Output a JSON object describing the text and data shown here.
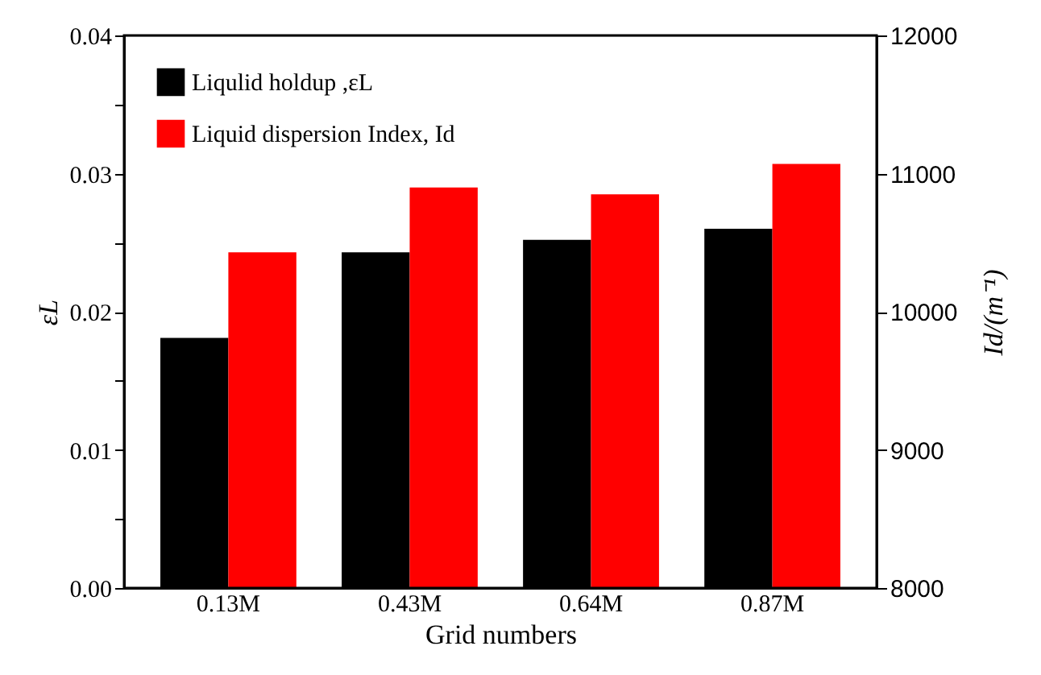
{
  "chart_data": {
    "type": "bar",
    "xlabel": "Grid numbers",
    "ylabel": "εL",
    "y2label": "Id/(m⁻¹)",
    "categories": [
      "0.13M",
      "0.43M",
      "0.64M",
      "0.87M"
    ],
    "series": [
      {
        "name": "Liqulid holdup ,εL",
        "color": "#000000",
        "values": [
          0.0181,
          0.0243,
          0.0252,
          0.026
        ]
      },
      {
        "name": "Liquid dispersion Index, Id",
        "color": "#ff0000",
        "axis": "y2",
        "values": [
          10430,
          10900,
          10850,
          11070
        ]
      }
    ],
    "ylim": [
      0,
      0.04
    ],
    "yticks": [
      {
        "value": 0,
        "label": "0.00"
      },
      {
        "value": 0.005,
        "label": null
      },
      0.01,
      {
        "value": 0.015,
        "label": null
      },
      0.02,
      {
        "value": 0.025,
        "label": null
      },
      0.03,
      {
        "value": 0.035,
        "label": null
      },
      0.04
    ],
    "y2lim": [
      8000,
      12000
    ],
    "y2ticks": [
      8000,
      9000,
      10000,
      11000,
      12000
    ],
    "legend": "top left",
    "grid": false
  }
}
